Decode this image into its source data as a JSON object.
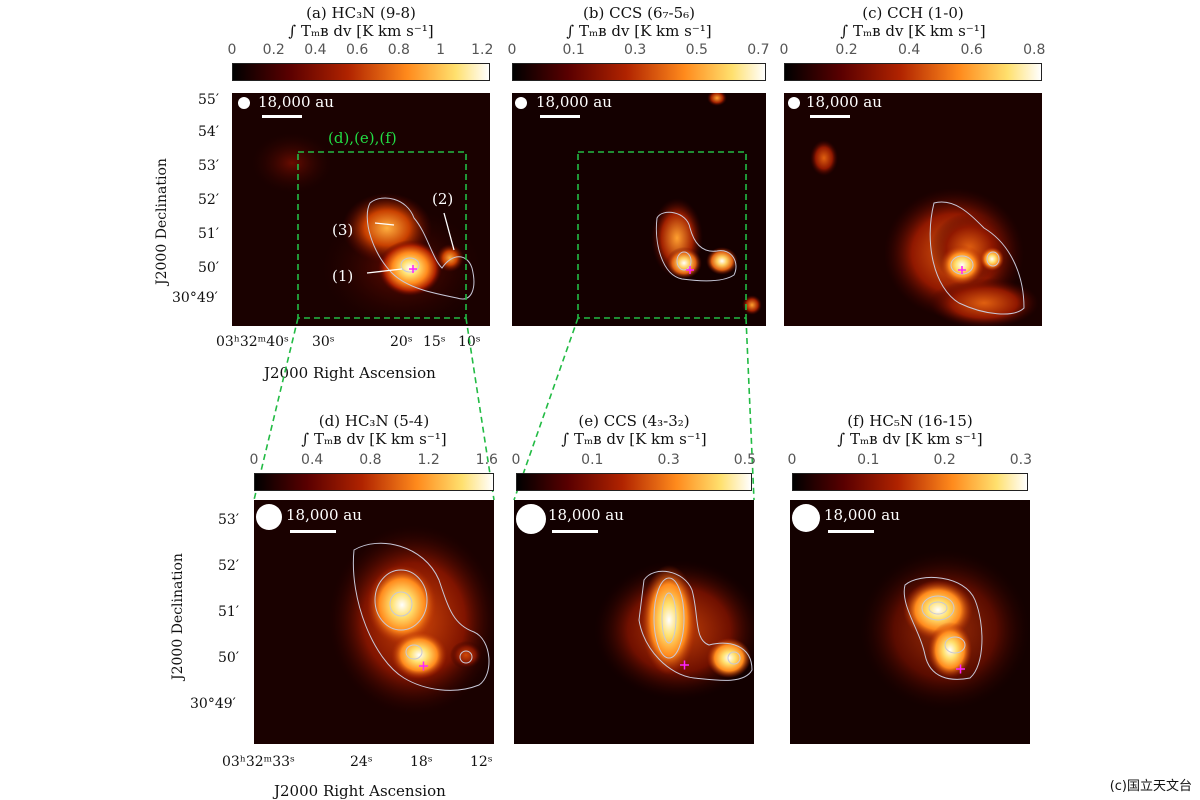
{
  "panels": {
    "a": {
      "title": "(a) HC₃N (9-8)",
      "unit": "∫ Tₘʙ dv [K km s⁻¹]",
      "ticks": [
        "0",
        "0.2",
        "0.4",
        "0.6",
        "0.8",
        "1",
        "1.2"
      ]
    },
    "b": {
      "title": "(b) CCS (6₇-5₆)",
      "unit": "∫ Tₘʙ dv [K km s⁻¹]",
      "ticks": [
        "0",
        "0.1",
        "0.3",
        "0.5",
        "0.7"
      ]
    },
    "c": {
      "title": "(c) CCH (1-0)",
      "unit": "∫ Tₘʙ dv [K km s⁻¹]",
      "ticks": [
        "0",
        "0.2",
        "0.4",
        "0.6",
        "0.8"
      ]
    },
    "d": {
      "title": "(d) HC₃N (5-4)",
      "unit": "∫ Tₘʙ dv [K km s⁻¹]",
      "ticks": [
        "0",
        "0.4",
        "0.8",
        "1.2",
        "1.6"
      ]
    },
    "e": {
      "title": "(e) CCS (4₃-3₂)",
      "unit": "∫ Tₘʙ dv [K km s⁻¹]",
      "ticks": [
        "0",
        "0.1",
        "0.3",
        "0.5"
      ]
    },
    "f": {
      "title": "(f) HC₅N (16-15)",
      "unit": "∫ Tₘʙ dv [K km s⁻¹]",
      "ticks": [
        "0",
        "0.1",
        "0.2",
        "0.3"
      ]
    }
  },
  "scale_label": "18,000 au",
  "zoom_box_label": "(d),(e),(f)",
  "source_labels": [
    "(1)",
    "(2)",
    "(3)"
  ],
  "top_axes": {
    "ylabel": "J2000 Declination",
    "xlabel": "J2000 Right Ascension",
    "yticks": [
      "55′",
      "54′",
      "53′",
      "52′",
      "51′",
      "50′",
      "30°49′"
    ],
    "xticks": [
      "03ʰ32ᵐ40ˢ",
      "30ˢ",
      "20ˢ",
      "15ˢ",
      "10ˢ"
    ]
  },
  "bottom_axes": {
    "ylabel": "J2000 Declination",
    "xlabel": "J2000 Right Ascension",
    "yticks": [
      "53′",
      "52′",
      "51′",
      "50′",
      "30°49′"
    ],
    "xticks": [
      "03ʰ32ᵐ33ˢ",
      "24ˢ",
      "18ˢ",
      "12ˢ"
    ]
  },
  "credit": "(c)国立天文台",
  "colors": {
    "colormap": [
      "#000000",
      "#5a0000",
      "#b02300",
      "#ff8a1c",
      "#ffe06e",
      "#ffffff"
    ],
    "contour": "#c8c8d8",
    "zoom_box": "#22bb44",
    "protostar": "#ff22ff"
  }
}
